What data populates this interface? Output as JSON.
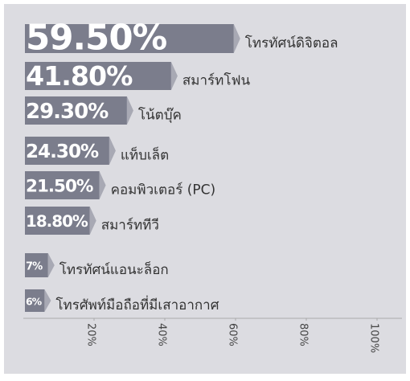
{
  "chart_data": {
    "type": "bar",
    "orientation": "horizontal",
    "categories": [
      "โทรทัศน์ดิจิตอล",
      "สมาร์ทโฟน",
      "โน้ตบุ๊ค",
      "แท็บเล็ต",
      "คอมพิวเตอร์ (PC)",
      "สมาร์ททีวี",
      "โทรทัศน์แอนะล็อก",
      "โทรศัพท์มือถือที่มีเสาอากาศ"
    ],
    "values": [
      59.5,
      41.8,
      29.3,
      24.3,
      21.5,
      18.8,
      7,
      6
    ],
    "value_labels": [
      "59.50%",
      "41.80%",
      "29.30%",
      "24.30%",
      "21.50%",
      "18.80%",
      "7%",
      "6%"
    ],
    "color": "#7b7d8c",
    "xlim": [
      0,
      100
    ],
    "xticks": [
      {
        "value": 20,
        "label": "20%"
      },
      {
        "value": 40,
        "label": "40%"
      },
      {
        "value": 60,
        "label": "60%"
      },
      {
        "value": 80,
        "label": "80%"
      },
      {
        "value": 100,
        "label": "100%"
      }
    ]
  }
}
